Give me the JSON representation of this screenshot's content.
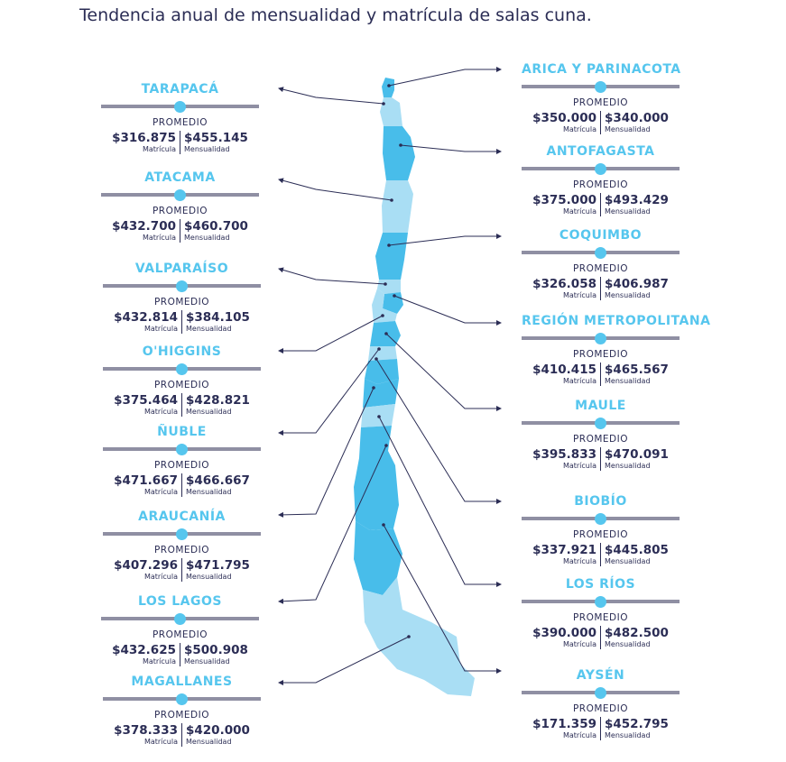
{
  "title": "Tendencia anual de mensualidad y matrícula de salas cuna.",
  "promedio_label": "PROMEDIO",
  "matricula_label": "Matrícula",
  "mensualidad_label": "Mensualidad",
  "colors": {
    "accent": "#56c6ee",
    "text": "#2b2d55",
    "bar": "#8f8fa3",
    "region_dark": "#48bdea",
    "region_light": "#a9def4"
  },
  "regions": [
    {
      "key": "tarapaca",
      "name": "TARAPACÁ",
      "matricula": "$316.875",
      "mensualidad": "$455.145"
    },
    {
      "key": "atacama",
      "name": "ATACAMA",
      "matricula": "$432.700",
      "mensualidad": "$460.700"
    },
    {
      "key": "valparaiso",
      "name": "VALPARAÍSO",
      "matricula": "$432.814",
      "mensualidad": "$384.105"
    },
    {
      "key": "ohiggins",
      "name": "O'HIGGINS",
      "matricula": "$375.464",
      "mensualidad": "$428.821"
    },
    {
      "key": "nuble",
      "name": "ÑUBLE",
      "matricula": "$471.667",
      "mensualidad": "$466.667"
    },
    {
      "key": "araucania",
      "name": "ARAUCANÍA",
      "matricula": "$407.296",
      "mensualidad": "$471.795"
    },
    {
      "key": "los-lagos",
      "name": "LOS LAGOS",
      "matricula": "$432.625",
      "mensualidad": "$500.908"
    },
    {
      "key": "magallanes",
      "name": "MAGALLANES",
      "matricula": "$378.333",
      "mensualidad": "$420.000"
    },
    {
      "key": "arica",
      "name": "ARICA Y PARINACOTA",
      "matricula": "$350.000",
      "mensualidad": "$340.000"
    },
    {
      "key": "antofagasta",
      "name": "ANTOFAGASTA",
      "matricula": "$375.000",
      "mensualidad": "$493.429"
    },
    {
      "key": "coquimbo",
      "name": "COQUIMBO",
      "matricula": "$326.058",
      "mensualidad": "$406.987"
    },
    {
      "key": "metropolitana",
      "name": "REGIÓN METROPOLITANA",
      "matricula": "$410.415",
      "mensualidad": "$465.567"
    },
    {
      "key": "maule",
      "name": "MAULE",
      "matricula": "$395.833",
      "mensualidad": "$470.091"
    },
    {
      "key": "biobio",
      "name": "BIOBÍO",
      "matricula": "$337.921",
      "mensualidad": "$445.805"
    },
    {
      "key": "los-rios",
      "name": "LOS RÍOS",
      "matricula": "$390.000",
      "mensualidad": "$482.500"
    },
    {
      "key": "aysen",
      "name": "AYSÉN",
      "matricula": "$171.359",
      "mensualidad": "$452.795"
    }
  ]
}
